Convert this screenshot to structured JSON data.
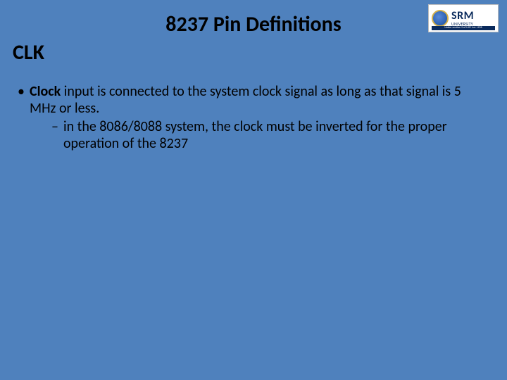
{
  "colors": {
    "background": "#4f81bd",
    "text": "#000000",
    "logo_bg": "#ffffff",
    "logo_text": "#0a2a5c",
    "logo_badge_inner": "#5a8ad8",
    "logo_badge_outer": "#2a5fb0",
    "logo_badge_ring": "#d4b04a"
  },
  "typography": {
    "title_fontsize": 30,
    "subtitle_fontsize": 30,
    "body_fontsize": 20,
    "font_family": "Calibri"
  },
  "logo": {
    "main": "SRM",
    "sub": "UNIVERSITY",
    "strip": "Under section 3 of UGC Act 1956"
  },
  "title_prefix": "8237",
  "title_rest": " Pin Definitions",
  "subtitle": "CLK",
  "bullets": [
    {
      "level": 1,
      "marker": "•",
      "bold_lead": "Clock",
      "rest": " input is connected to the system clock signal as long as that signal is 5 MHz or less."
    },
    {
      "level": 2,
      "marker": "–",
      "text": "in the 8086/8088 system, the clock must be inverted for the proper operation of the 8237"
    }
  ]
}
